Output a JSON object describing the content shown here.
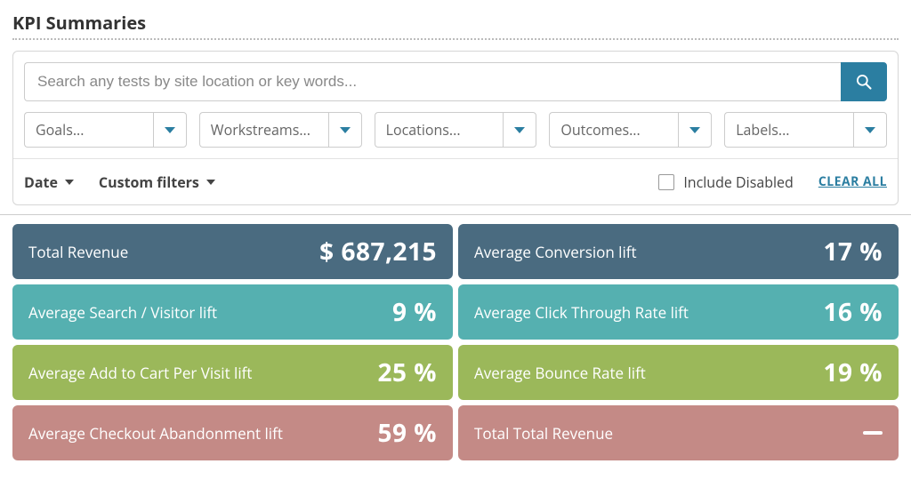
{
  "title": "KPI Summaries",
  "search": {
    "placeholder": "Search any tests by site location or key words..."
  },
  "dropdowns": [
    {
      "label": "Goals..."
    },
    {
      "label": "Workstreams..."
    },
    {
      "label": "Locations..."
    },
    {
      "label": "Outcomes..."
    },
    {
      "label": "Labels..."
    }
  ],
  "bottomFilters": {
    "date": "Date",
    "custom": "Custom filters",
    "includeDisabled": "Include Disabled",
    "clearAll": "CLEAR ALL"
  },
  "colors": {
    "navy": "#4a6b80",
    "teal": "#55b0b0",
    "olive": "#9bb85a",
    "rose": "#c48a86",
    "accent": "#2b7ea1"
  },
  "kpis": [
    {
      "label": "Total Revenue",
      "value": "$ 687,215",
      "color": "navy"
    },
    {
      "label": "Average Conversion lift",
      "value": "17 %",
      "color": "navy"
    },
    {
      "label": "Average Search / Visitor lift",
      "value": "9 %",
      "color": "teal"
    },
    {
      "label": "Average Click Through Rate lift",
      "value": "16 %",
      "color": "teal"
    },
    {
      "label": "Average Add to Cart Per Visit lift",
      "value": "25 %",
      "color": "olive"
    },
    {
      "label": "Average Bounce Rate lift",
      "value": "19 %",
      "color": "olive"
    },
    {
      "label": "Average Checkout Abandonment lift",
      "value": "59 %",
      "color": "rose"
    },
    {
      "label": "Total Total Revenue",
      "value": "—",
      "color": "rose",
      "dash": true
    }
  ]
}
